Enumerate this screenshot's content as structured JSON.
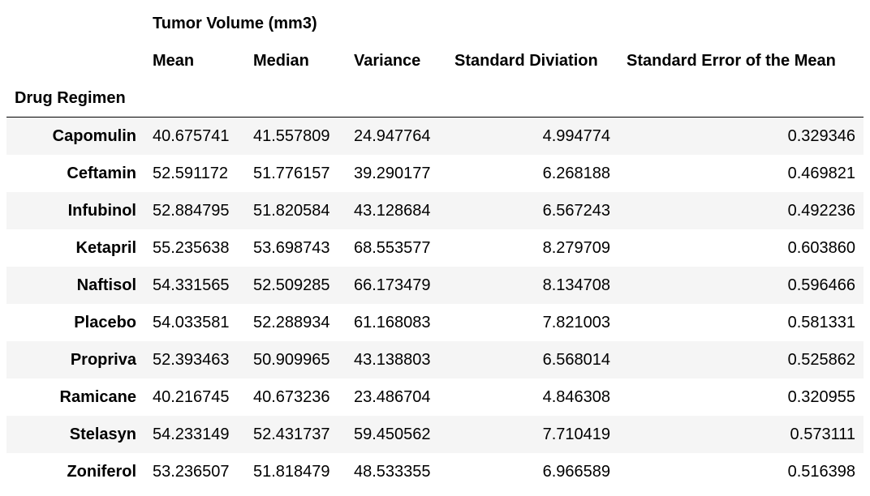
{
  "table": {
    "group_header": "Tumor Volume (mm3)",
    "index_name": "Drug Regimen",
    "columns": [
      "Mean",
      "Median",
      "Variance",
      "Standard Diviation",
      "Standard Error of the Mean"
    ],
    "rows": [
      {
        "regimen": "Capomulin",
        "values": [
          "40.675741",
          "41.557809",
          "24.947764",
          "4.994774",
          "0.329346"
        ]
      },
      {
        "regimen": "Ceftamin",
        "values": [
          "52.591172",
          "51.776157",
          "39.290177",
          "6.268188",
          "0.469821"
        ]
      },
      {
        "regimen": "Infubinol",
        "values": [
          "52.884795",
          "51.820584",
          "43.128684",
          "6.567243",
          "0.492236"
        ]
      },
      {
        "regimen": "Ketapril",
        "values": [
          "55.235638",
          "53.698743",
          "68.553577",
          "8.279709",
          "0.603860"
        ]
      },
      {
        "regimen": "Naftisol",
        "values": [
          "54.331565",
          "52.509285",
          "66.173479",
          "8.134708",
          "0.596466"
        ]
      },
      {
        "regimen": "Placebo",
        "values": [
          "54.033581",
          "52.288934",
          "61.168083",
          "7.821003",
          "0.581331"
        ]
      },
      {
        "regimen": "Propriva",
        "values": [
          "52.393463",
          "50.909965",
          "43.138803",
          "6.568014",
          "0.525862"
        ]
      },
      {
        "regimen": "Ramicane",
        "values": [
          "40.216745",
          "40.673236",
          "23.486704",
          "4.846308",
          "0.320955"
        ]
      },
      {
        "regimen": "Stelasyn",
        "values": [
          "54.233149",
          "52.431737",
          "59.450562",
          "7.710419",
          "0.573111"
        ]
      },
      {
        "regimen": "Zoniferol",
        "values": [
          "53.236507",
          "51.818479",
          "48.533355",
          "6.966589",
          "0.516398"
        ]
      }
    ]
  }
}
